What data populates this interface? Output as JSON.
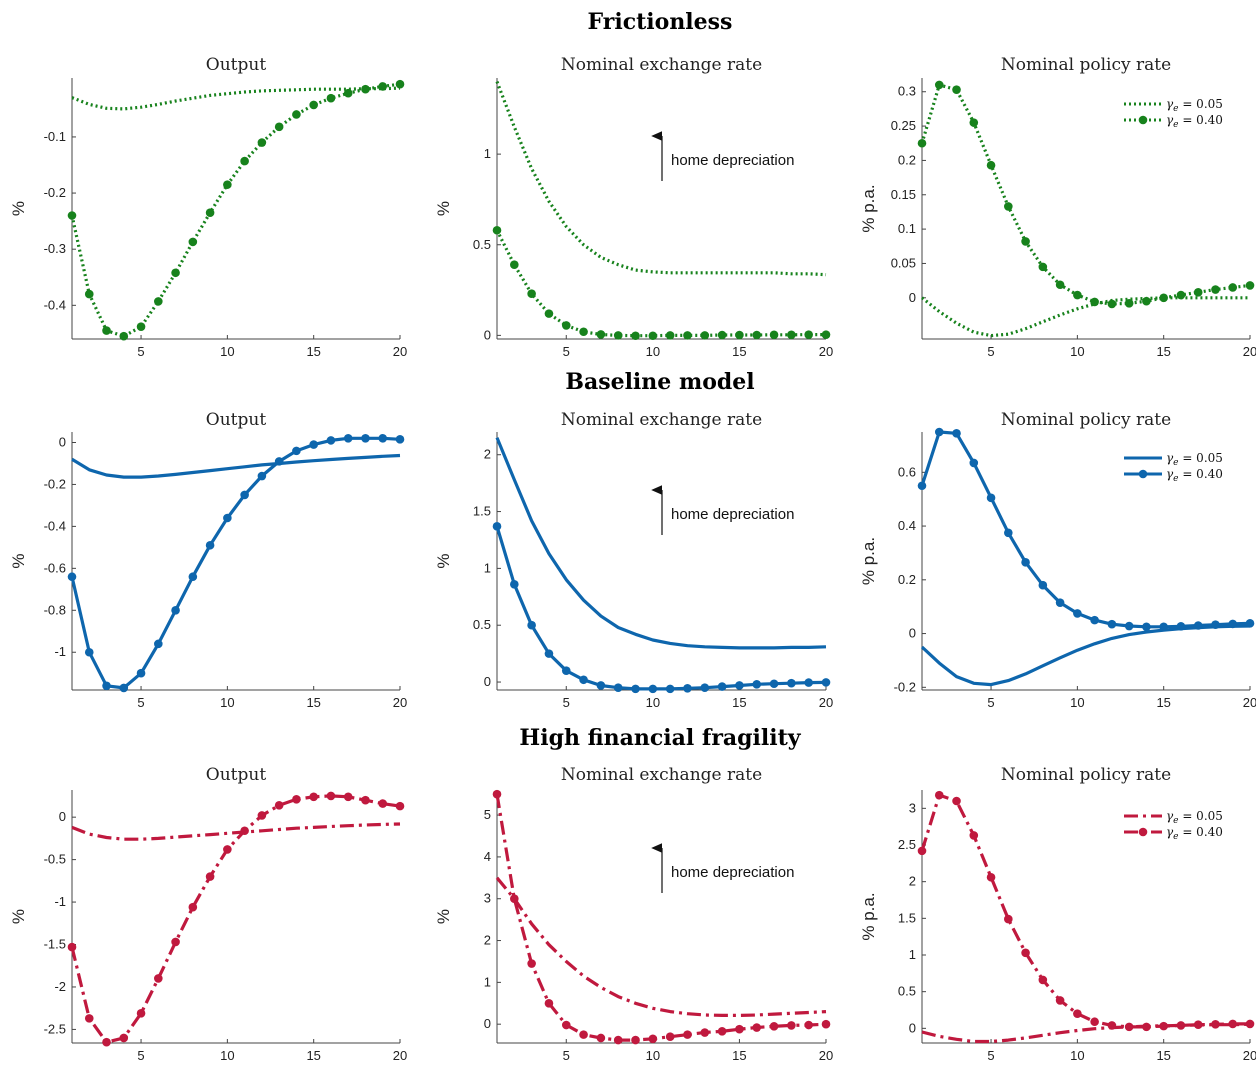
{
  "rows": [
    {
      "title": "Frictionless",
      "color": "#17821c",
      "style": "dotted",
      "legend": [
        "γe = 0.05",
        "γe = 0.40"
      ],
      "panels": [
        {
          "title": "Output",
          "ylabel": "%",
          "ylim": [
            -0.46,
            0.005
          ],
          "yticks": [
            -0.4,
            -0.3,
            -0.2,
            -0.1
          ],
          "yticklabels": [
            "-0.4",
            "-0.3",
            "-0.2",
            "-0.1"
          ]
        },
        {
          "title": "Nominal exchange rate",
          "ylabel": "%",
          "ylim": [
            -0.02,
            1.42
          ],
          "yticks": [
            0,
            0.5,
            1
          ],
          "yticklabels": [
            "0",
            "0.5",
            "1"
          ],
          "annotation": "home depreciation"
        },
        {
          "title": "Nominal policy rate",
          "ylabel": "% p.a.",
          "ylim": [
            -0.06,
            0.32
          ],
          "yticks": [
            0,
            0.05,
            0.1,
            0.15,
            0.2,
            0.25,
            0.3
          ],
          "yticklabels": [
            "0",
            "0.05",
            "0.1",
            "0.15",
            "0.2",
            "0.25",
            "0.3"
          ],
          "legend": true
        }
      ]
    },
    {
      "title": "Baseline model",
      "color": "#0e66ad",
      "style": "solid",
      "legend": [
        "γe = 0.05",
        "γe = 0.40"
      ],
      "panels": [
        {
          "title": "Output",
          "ylabel": "%",
          "ylim": [
            -1.18,
            0.05
          ],
          "yticks": [
            -1,
            -0.8,
            -0.6,
            -0.4,
            -0.2,
            0
          ],
          "yticklabels": [
            "-1",
            "-0.8",
            "-0.6",
            "-0.4",
            "-0.2",
            "0"
          ]
        },
        {
          "title": "Nominal exchange rate",
          "ylabel": "%",
          "ylim": [
            -0.07,
            2.2
          ],
          "yticks": [
            0,
            0.5,
            1,
            1.5,
            2
          ],
          "yticklabels": [
            "0",
            "0.5",
            "1",
            "1.5",
            "2"
          ],
          "annotation": "home depreciation"
        },
        {
          "title": "Nominal policy rate",
          "ylabel": "% p.a.",
          "ylim": [
            -0.21,
            0.75
          ],
          "yticks": [
            -0.2,
            0,
            0.2,
            0.4,
            0.6
          ],
          "yticklabels": [
            "-0.2",
            "0",
            "0.2",
            "0.4",
            "0.6"
          ],
          "legend": true
        }
      ]
    },
    {
      "title": "High financial fragility",
      "color": "#c0193e",
      "style": "dashdot",
      "legend": [
        "γe = 0.05",
        "γe = 0.40"
      ],
      "panels": [
        {
          "title": "Output",
          "ylabel": "%",
          "ylim": [
            -2.66,
            0.32
          ],
          "yticks": [
            -2.5,
            -2,
            -1.5,
            -1,
            -0.5,
            0
          ],
          "yticklabels": [
            "-2.5",
            "-2",
            "-1.5",
            "-1",
            "-0.5",
            "0"
          ]
        },
        {
          "title": "Nominal exchange rate",
          "ylabel": "%",
          "ylim": [
            -0.45,
            5.6
          ],
          "yticks": [
            0,
            1,
            2,
            3,
            4,
            5
          ],
          "yticklabels": [
            "0",
            "1",
            "2",
            "3",
            "4",
            "5"
          ],
          "annotation": "home depreciation"
        },
        {
          "title": "Nominal policy rate",
          "ylabel": "% p.a.",
          "ylim": [
            -0.2,
            3.25
          ],
          "yticks": [
            0,
            0.5,
            1,
            1.5,
            2,
            2.5,
            3
          ],
          "yticklabels": [
            "0",
            "0.5",
            "1",
            "1.5",
            "2",
            "2.5",
            "3"
          ],
          "legend": true
        }
      ]
    }
  ],
  "xaxis": {
    "xlim": [
      1,
      20
    ],
    "xticks": [
      5,
      10,
      15,
      20
    ],
    "xticklabels": [
      "5",
      "10",
      "15",
      "20"
    ]
  },
  "chart_data": [
    {
      "type": "line",
      "title": "Output",
      "row": "Frictionless",
      "ylabel": "%",
      "x": [
        1,
        2,
        3,
        4,
        5,
        6,
        7,
        8,
        9,
        10,
        11,
        12,
        13,
        14,
        15,
        16,
        17,
        18,
        19,
        20
      ],
      "series": [
        {
          "name": "γe = 0.05",
          "values": [
            -0.03,
            -0.042,
            -0.049,
            -0.05,
            -0.047,
            -0.042,
            -0.036,
            -0.031,
            -0.026,
            -0.023,
            -0.02,
            -0.018,
            -0.017,
            -0.016,
            -0.015,
            -0.015,
            -0.015,
            -0.014,
            -0.014,
            -0.013
          ]
        },
        {
          "name": "γe = 0.40",
          "values": [
            -0.24,
            -0.38,
            -0.445,
            -0.455,
            -0.438,
            -0.393,
            -0.342,
            -0.287,
            -0.235,
            -0.185,
            -0.143,
            -0.11,
            -0.082,
            -0.06,
            -0.043,
            -0.031,
            -0.022,
            -0.015,
            -0.01,
            -0.006
          ]
        }
      ]
    },
    {
      "type": "line",
      "title": "Nominal exchange rate",
      "row": "Frictionless",
      "ylabel": "%",
      "x": [
        1,
        2,
        3,
        4,
        5,
        6,
        7,
        8,
        9,
        10,
        11,
        12,
        13,
        14,
        15,
        16,
        17,
        18,
        19,
        20
      ],
      "series": [
        {
          "name": "γe = 0.05",
          "values": [
            1.4,
            1.15,
            0.92,
            0.74,
            0.6,
            0.5,
            0.43,
            0.39,
            0.36,
            0.35,
            0.345,
            0.345,
            0.345,
            0.345,
            0.345,
            0.345,
            0.345,
            0.34,
            0.34,
            0.335
          ]
        },
        {
          "name": "γe = 0.40",
          "values": [
            0.58,
            0.39,
            0.23,
            0.12,
            0.055,
            0.02,
            0.005,
            0,
            -0.002,
            -0.002,
            0,
            0,
            0,
            0.002,
            0.002,
            0.002,
            0.003,
            0.003,
            0.004,
            0.004
          ]
        }
      ]
    },
    {
      "type": "line",
      "title": "Nominal policy rate",
      "row": "Frictionless",
      "ylabel": "% p.a.",
      "x": [
        1,
        2,
        3,
        4,
        5,
        6,
        7,
        8,
        9,
        10,
        11,
        12,
        13,
        14,
        15,
        16,
        17,
        18,
        19,
        20
      ],
      "series": [
        {
          "name": "γe = 0.05",
          "values": [
            0,
            -0.02,
            -0.037,
            -0.05,
            -0.055,
            -0.053,
            -0.045,
            -0.035,
            -0.025,
            -0.016,
            -0.009,
            -0.004,
            -0.002,
            -0.001,
            0,
            0,
            0,
            0,
            0,
            0
          ]
        },
        {
          "name": "γe = 0.40",
          "values": [
            0.225,
            0.31,
            0.303,
            0.255,
            0.193,
            0.133,
            0.082,
            0.045,
            0.019,
            0.004,
            -0.006,
            -0.009,
            -0.008,
            -0.005,
            0,
            0.004,
            0.008,
            0.012,
            0.015,
            0.018
          ]
        }
      ]
    },
    {
      "type": "line",
      "title": "Output",
      "row": "Baseline model",
      "ylabel": "%",
      "x": [
        1,
        2,
        3,
        4,
        5,
        6,
        7,
        8,
        9,
        10,
        11,
        12,
        13,
        14,
        15,
        16,
        17,
        18,
        19,
        20
      ],
      "series": [
        {
          "name": "γe = 0.05",
          "values": [
            -0.08,
            -0.13,
            -0.155,
            -0.165,
            -0.165,
            -0.16,
            -0.152,
            -0.143,
            -0.134,
            -0.125,
            -0.116,
            -0.107,
            -0.1,
            -0.093,
            -0.087,
            -0.081,
            -0.076,
            -0.071,
            -0.066,
            -0.062
          ]
        },
        {
          "name": "γe = 0.40",
          "values": [
            -0.64,
            -1.0,
            -1.16,
            -1.17,
            -1.1,
            -0.96,
            -0.8,
            -0.64,
            -0.49,
            -0.36,
            -0.25,
            -0.16,
            -0.09,
            -0.04,
            -0.01,
            0.01,
            0.02,
            0.02,
            0.02,
            0.015
          ]
        }
      ]
    },
    {
      "type": "line",
      "title": "Nominal exchange rate",
      "row": "Baseline model",
      "ylabel": "%",
      "x": [
        1,
        2,
        3,
        4,
        5,
        6,
        7,
        8,
        9,
        10,
        11,
        12,
        13,
        14,
        15,
        16,
        17,
        18,
        19,
        20
      ],
      "series": [
        {
          "name": "γe = 0.05",
          "values": [
            2.15,
            1.78,
            1.42,
            1.13,
            0.9,
            0.72,
            0.58,
            0.48,
            0.42,
            0.37,
            0.34,
            0.32,
            0.31,
            0.305,
            0.3,
            0.3,
            0.3,
            0.305,
            0.305,
            0.31
          ]
        },
        {
          "name": "γe = 0.40",
          "values": [
            1.37,
            0.86,
            0.5,
            0.25,
            0.1,
            0.02,
            -0.03,
            -0.05,
            -0.06,
            -0.06,
            -0.06,
            -0.055,
            -0.05,
            -0.04,
            -0.03,
            -0.02,
            -0.015,
            -0.01,
            -0.005,
            -0.003
          ]
        }
      ]
    },
    {
      "type": "line",
      "title": "Nominal policy rate",
      "row": "Baseline model",
      "ylabel": "% p.a.",
      "x": [
        1,
        2,
        3,
        4,
        5,
        6,
        7,
        8,
        9,
        10,
        11,
        12,
        13,
        14,
        15,
        16,
        17,
        18,
        19,
        20
      ],
      "series": [
        {
          "name": "γe = 0.05",
          "values": [
            -0.05,
            -0.11,
            -0.16,
            -0.185,
            -0.19,
            -0.175,
            -0.15,
            -0.12,
            -0.09,
            -0.062,
            -0.038,
            -0.018,
            -0.004,
            0.006,
            0.013,
            0.018,
            0.022,
            0.025,
            0.027,
            0.028
          ]
        },
        {
          "name": "γe = 0.40",
          "values": [
            0.55,
            0.75,
            0.745,
            0.635,
            0.505,
            0.375,
            0.265,
            0.18,
            0.115,
            0.075,
            0.05,
            0.035,
            0.028,
            0.025,
            0.025,
            0.027,
            0.03,
            0.033,
            0.036,
            0.038
          ]
        }
      ]
    },
    {
      "type": "line",
      "title": "Output",
      "row": "High financial fragility",
      "ylabel": "%",
      "x": [
        1,
        2,
        3,
        4,
        5,
        6,
        7,
        8,
        9,
        10,
        11,
        12,
        13,
        14,
        15,
        16,
        17,
        18,
        19,
        20
      ],
      "series": [
        {
          "name": "γe = 0.05",
          "values": [
            -0.12,
            -0.2,
            -0.24,
            -0.26,
            -0.26,
            -0.25,
            -0.235,
            -0.22,
            -0.205,
            -0.19,
            -0.175,
            -0.16,
            -0.145,
            -0.13,
            -0.12,
            -0.11,
            -0.1,
            -0.092,
            -0.085,
            -0.08
          ]
        },
        {
          "name": "γe = 0.40",
          "values": [
            -1.53,
            -2.37,
            -2.65,
            -2.6,
            -2.31,
            -1.9,
            -1.47,
            -1.06,
            -0.7,
            -0.38,
            -0.16,
            0.02,
            0.14,
            0.21,
            0.24,
            0.25,
            0.24,
            0.2,
            0.16,
            0.13
          ]
        }
      ]
    },
    {
      "type": "line",
      "title": "Nominal exchange rate",
      "row": "High financial fragility",
      "ylabel": "%",
      "x": [
        1,
        2,
        3,
        4,
        5,
        6,
        7,
        8,
        9,
        10,
        11,
        12,
        13,
        14,
        15,
        16,
        17,
        18,
        19,
        20
      ],
      "series": [
        {
          "name": "γe = 0.05",
          "values": [
            3.5,
            3.0,
            2.4,
            1.9,
            1.5,
            1.15,
            0.88,
            0.66,
            0.5,
            0.38,
            0.3,
            0.25,
            0.22,
            0.21,
            0.21,
            0.22,
            0.24,
            0.26,
            0.28,
            0.3
          ]
        },
        {
          "name": "γe = 0.40",
          "values": [
            5.5,
            3.0,
            1.45,
            0.5,
            -0.02,
            -0.25,
            -0.33,
            -0.38,
            -0.38,
            -0.35,
            -0.3,
            -0.25,
            -0.2,
            -0.17,
            -0.12,
            -0.08,
            -0.05,
            -0.03,
            -0.02,
            0
          ]
        }
      ]
    },
    {
      "type": "line",
      "title": "Nominal policy rate",
      "row": "High financial fragility",
      "ylabel": "% p.a.",
      "x": [
        1,
        2,
        3,
        4,
        5,
        6,
        7,
        8,
        9,
        10,
        11,
        12,
        13,
        14,
        15,
        16,
        17,
        18,
        19,
        20
      ],
      "series": [
        {
          "name": "γe = 0.05",
          "values": [
            -0.05,
            -0.11,
            -0.15,
            -0.18,
            -0.18,
            -0.16,
            -0.13,
            -0.095,
            -0.06,
            -0.03,
            -0.005,
            0.01,
            0.02,
            0.03,
            0.035,
            0.04,
            0.045,
            0.05,
            0.05,
            0.055
          ]
        },
        {
          "name": "γe = 0.40",
          "values": [
            2.42,
            3.18,
            3.1,
            2.63,
            2.06,
            1.49,
            1.03,
            0.66,
            0.38,
            0.2,
            0.09,
            0.04,
            0.02,
            0.02,
            0.03,
            0.04,
            0.05,
            0.055,
            0.06,
            0.06
          ]
        }
      ]
    }
  ]
}
